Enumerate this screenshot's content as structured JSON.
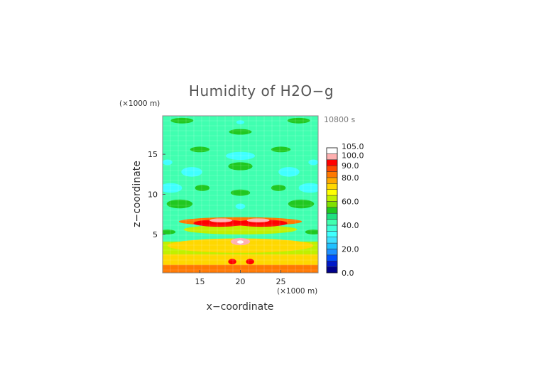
{
  "chart_data": {
    "type": "heatmap",
    "title": "Humidity of H2O−g",
    "time_label": "10800 s",
    "xlabel": "x−coordinate",
    "ylabel": "z−coordinate",
    "x_unit": "(×1000 m)",
    "y_unit": "(×1000 m)",
    "xlim": [
      10.4,
      29.6
    ],
    "ylim": [
      0.2,
      19.8
    ],
    "x_ticks": [
      15,
      20,
      25
    ],
    "y_ticks": [
      5,
      10,
      15
    ],
    "colorbar": {
      "levels": [
        0,
        5,
        10,
        15,
        20,
        25,
        30,
        35,
        40,
        45,
        50,
        55,
        60,
        65,
        70,
        75,
        80,
        85,
        90,
        95,
        100,
        105
      ],
      "tick_labels": [
        "0.0",
        "20.0",
        "40.0",
        "60.0",
        "80.0",
        "90.0",
        "100.0",
        "105.0"
      ],
      "tick_values": [
        0,
        20,
        40,
        60,
        80,
        90,
        100,
        105
      ],
      "colors": [
        "#00008b",
        "#0018c8",
        "#0050ff",
        "#1e90ff",
        "#20c0ff",
        "#40e0ff",
        "#40ffff",
        "#40ffd8",
        "#40ffb0",
        "#20e080",
        "#20c820",
        "#80e000",
        "#c0f000",
        "#ffff00",
        "#ffd800",
        "#ffa800",
        "#ff7800",
        "#ff4800",
        "#ff0000",
        "#ffb0b0",
        "#ffffff"
      ]
    },
    "background_value": 42,
    "features": [
      {
        "shape": "band",
        "z": 0.9,
        "half_width": 0.9,
        "value": 81
      },
      {
        "shape": "band",
        "z": 2.2,
        "half_width": 1.0,
        "value": 72
      },
      {
        "shape": "band",
        "z": 3.3,
        "half_width": 0.8,
        "value": 62
      },
      {
        "shape": "ellipse",
        "x": 20,
        "z": 3.6,
        "rx": 9.0,
        "rz": 0.9,
        "value": 70
      },
      {
        "shape": "ellipse",
        "x": 20,
        "z": 4.1,
        "rx": 1.2,
        "rz": 0.45,
        "value": 95
      },
      {
        "shape": "ellipse",
        "x": 20,
        "z": 4.05,
        "rx": 0.4,
        "rz": 0.2,
        "value": 104
      },
      {
        "shape": "ellipse",
        "x": 19.0,
        "z": 1.6,
        "rx": 0.5,
        "rz": 0.35,
        "value": 92
      },
      {
        "shape": "ellipse",
        "x": 21.2,
        "z": 1.6,
        "rx": 0.5,
        "rz": 0.35,
        "value": 92
      },
      {
        "shape": "ellipse",
        "x": 20,
        "z": 5.6,
        "rx": 7.0,
        "rz": 0.6,
        "value": 64
      },
      {
        "shape": "ellipse",
        "x": 20,
        "z": 6.6,
        "rx": 7.6,
        "rz": 0.55,
        "value": 82
      },
      {
        "shape": "ellipse",
        "x": 17.4,
        "z": 6.4,
        "rx": 3.2,
        "rz": 0.45,
        "value": 92
      },
      {
        "shape": "ellipse",
        "x": 22.6,
        "z": 6.4,
        "rx": 3.2,
        "rz": 0.45,
        "value": 92
      },
      {
        "shape": "ellipse",
        "x": 17.6,
        "z": 6.75,
        "rx": 1.4,
        "rz": 0.25,
        "value": 97
      },
      {
        "shape": "ellipse",
        "x": 22.2,
        "z": 6.75,
        "rx": 1.4,
        "rz": 0.25,
        "value": 97
      },
      {
        "shape": "ellipse",
        "x": 20,
        "z": 8.5,
        "rx": 0.6,
        "rz": 0.35,
        "value": 32
      },
      {
        "shape": "ellipse",
        "x": 20,
        "z": 10.2,
        "rx": 1.2,
        "rz": 0.4,
        "value": 52
      },
      {
        "shape": "ellipse",
        "x": 20,
        "z": 13.5,
        "rx": 1.5,
        "rz": 0.5,
        "value": 50
      },
      {
        "shape": "ellipse",
        "x": 20,
        "z": 14.8,
        "rx": 1.8,
        "rz": 0.5,
        "value": 33
      },
      {
        "shape": "ellipse",
        "x": 20,
        "z": 17.8,
        "rx": 1.4,
        "rz": 0.35,
        "value": 52
      },
      {
        "shape": "ellipse",
        "x": 20,
        "z": 19.0,
        "rx": 0.5,
        "rz": 0.25,
        "value": 32
      },
      {
        "shape": "ellipse",
        "x": 14.0,
        "z": 12.8,
        "rx": 1.3,
        "rz": 0.6,
        "value": 33
      },
      {
        "shape": "ellipse",
        "x": 26.0,
        "z": 12.8,
        "rx": 1.3,
        "rz": 0.6,
        "value": 33
      },
      {
        "shape": "ellipse",
        "x": 11.4,
        "z": 10.8,
        "rx": 1.4,
        "rz": 0.6,
        "value": 33
      },
      {
        "shape": "ellipse",
        "x": 28.6,
        "z": 10.8,
        "rx": 1.4,
        "rz": 0.6,
        "value": 33
      },
      {
        "shape": "ellipse",
        "x": 11.0,
        "z": 14.0,
        "rx": 0.6,
        "rz": 0.35,
        "value": 32
      },
      {
        "shape": "ellipse",
        "x": 29.0,
        "z": 14.0,
        "rx": 0.6,
        "rz": 0.35,
        "value": 32
      },
      {
        "shape": "ellipse",
        "x": 12.5,
        "z": 8.8,
        "rx": 1.6,
        "rz": 0.55,
        "value": 50
      },
      {
        "shape": "ellipse",
        "x": 27.5,
        "z": 8.8,
        "rx": 1.6,
        "rz": 0.55,
        "value": 50
      },
      {
        "shape": "ellipse",
        "x": 15.3,
        "z": 10.8,
        "rx": 0.9,
        "rz": 0.4,
        "value": 51
      },
      {
        "shape": "ellipse",
        "x": 24.7,
        "z": 10.8,
        "rx": 0.9,
        "rz": 0.4,
        "value": 51
      },
      {
        "shape": "ellipse",
        "x": 15.0,
        "z": 15.6,
        "rx": 1.2,
        "rz": 0.35,
        "value": 51
      },
      {
        "shape": "ellipse",
        "x": 25.0,
        "z": 15.6,
        "rx": 1.2,
        "rz": 0.35,
        "value": 51
      },
      {
        "shape": "ellipse",
        "x": 12.8,
        "z": 19.2,
        "rx": 1.4,
        "rz": 0.35,
        "value": 51
      },
      {
        "shape": "ellipse",
        "x": 27.2,
        "z": 19.2,
        "rx": 1.4,
        "rz": 0.35,
        "value": 51
      },
      {
        "shape": "ellipse",
        "x": 11.0,
        "z": 5.3,
        "rx": 1.0,
        "rz": 0.3,
        "value": 51
      },
      {
        "shape": "ellipse",
        "x": 29.0,
        "z": 5.3,
        "rx": 1.0,
        "rz": 0.3,
        "value": 51
      }
    ]
  }
}
